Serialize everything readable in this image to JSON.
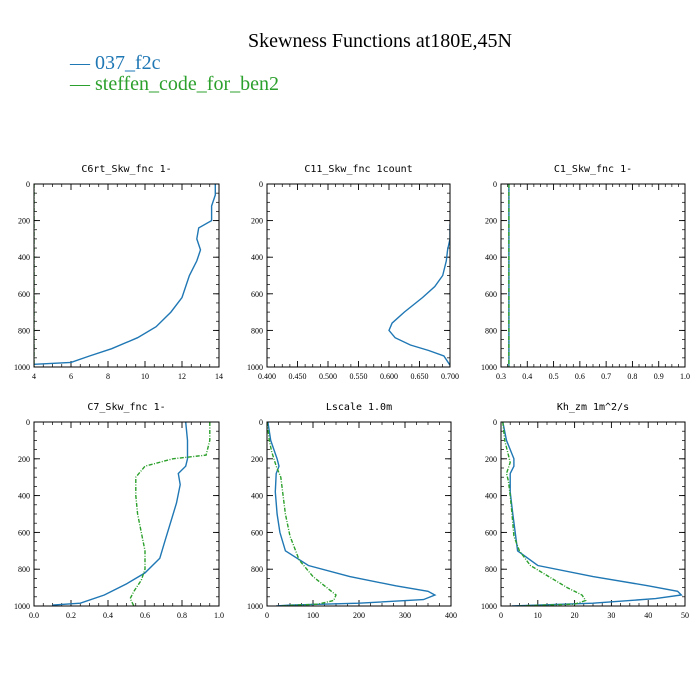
{
  "figure": {
    "title": "Skewness Functions at180E,45N"
  },
  "legend": [
    {
      "label": "037_f2c",
      "color": "#1f77b4"
    },
    {
      "label": "steffen_code_for_ben2",
      "color": "#2ca02c"
    }
  ],
  "chart_data": [
    {
      "type": "line",
      "title": "C6rt_Skw_fnc  1-",
      "xlim": [
        4,
        14
      ],
      "ylim": [
        1000,
        0
      ],
      "xticks": [
        4,
        6,
        8,
        10,
        12,
        14
      ],
      "xtick_labels": [
        "4",
        "6",
        "8",
        "10",
        "12",
        "14"
      ],
      "yticks": [
        0,
        200,
        400,
        600,
        800,
        1000
      ],
      "ytick_labels": [
        "0",
        "200",
        "400",
        "600",
        "800",
        "1000"
      ],
      "series": [
        {
          "name": "037_f2c",
          "color": "#1f77b4",
          "dashed": false,
          "x": [
            13.8,
            13.8,
            13.6,
            13.6,
            12.9,
            12.8,
            13.0,
            12.8,
            12.4,
            12.2,
            12.0,
            11.4,
            10.6,
            9.6,
            8.2,
            7.0,
            6.0,
            4.0
          ],
          "y": [
            0,
            60,
            120,
            200,
            240,
            300,
            360,
            420,
            500,
            560,
            620,
            700,
            780,
            840,
            900,
            940,
            975,
            985
          ]
        },
        {
          "name": "steffen_code_for_ben2",
          "color": "#2ca02c",
          "dashed": true,
          "x": [
            4.0,
            4.0
          ],
          "y": [
            0,
            1000
          ]
        }
      ]
    },
    {
      "type": "line",
      "title": "C11_Skw_fnc  1count",
      "xlim": [
        0.4,
        0.7
      ],
      "ylim": [
        1000,
        0
      ],
      "xticks": [
        0.4,
        0.45,
        0.5,
        0.55,
        0.6,
        0.65,
        0.7
      ],
      "xtick_labels": [
        "0.400",
        "0.450",
        "0.500",
        "0.550",
        "0.600",
        "0.650",
        "0.700"
      ],
      "yticks": [
        0,
        200,
        400,
        600,
        800,
        1000
      ],
      "ytick_labels": [
        "0",
        "200",
        "400",
        "600",
        "800",
        "1000"
      ],
      "series": [
        {
          "name": "037_f2c",
          "color": "#1f77b4",
          "dashed": false,
          "x": [
            0.7,
            0.7,
            0.696,
            0.694,
            0.688,
            0.675,
            0.655,
            0.625,
            0.605,
            0.6,
            0.61,
            0.635,
            0.665,
            0.69,
            0.7
          ],
          "y": [
            220,
            300,
            360,
            420,
            500,
            560,
            620,
            700,
            760,
            800,
            840,
            880,
            910,
            940,
            990
          ]
        },
        {
          "name": "steffen_code_for_ben2",
          "color": "#2ca02c",
          "dashed": true,
          "x": [],
          "y": []
        }
      ]
    },
    {
      "type": "line",
      "title": "C1_Skw_fnc  1-",
      "xlim": [
        0.3,
        1.0
      ],
      "ylim": [
        1000,
        0
      ],
      "xticks": [
        0.3,
        0.4,
        0.5,
        0.6,
        0.7,
        0.8,
        0.9,
        1.0
      ],
      "xtick_labels": [
        "0.3",
        "0.4",
        "0.5",
        "0.6",
        "0.7",
        "0.8",
        "0.9",
        "1.0"
      ],
      "yticks": [
        0,
        200,
        400,
        600,
        800,
        1000
      ],
      "ytick_labels": [
        "0",
        "200",
        "400",
        "600",
        "800",
        "1000"
      ],
      "series": [
        {
          "name": "037_f2c",
          "color": "#1f77b4",
          "dashed": false,
          "x": [
            0.33,
            0.33
          ],
          "y": [
            0,
            1000
          ]
        },
        {
          "name": "steffen_code_for_ben2",
          "color": "#2ca02c",
          "dashed": true,
          "x": [
            0.33,
            0.33
          ],
          "y": [
            0,
            1000
          ]
        }
      ]
    },
    {
      "type": "line",
      "title": "C7_Skw_fnc  1-",
      "xlim": [
        0.0,
        1.0
      ],
      "ylim": [
        1000,
        0
      ],
      "xticks": [
        0.0,
        0.2,
        0.4,
        0.6,
        0.8,
        1.0
      ],
      "xtick_labels": [
        "0.0",
        "0.2",
        "0.4",
        "0.6",
        "0.8",
        "1.0"
      ],
      "yticks": [
        0,
        200,
        400,
        600,
        800,
        1000
      ],
      "ytick_labels": [
        "0",
        "200",
        "400",
        "600",
        "800",
        "1000"
      ],
      "series": [
        {
          "name": "037_f2c",
          "color": "#1f77b4",
          "dashed": false,
          "x": [
            0.82,
            0.83,
            0.83,
            0.82,
            0.78,
            0.79,
            0.77,
            0.74,
            0.71,
            0.68,
            0.6,
            0.5,
            0.38,
            0.25,
            0.1
          ],
          "y": [
            0,
            100,
            200,
            240,
            280,
            340,
            440,
            540,
            640,
            740,
            820,
            880,
            940,
            985,
            995
          ]
        },
        {
          "name": "steffen_code_for_ben2",
          "color": "#2ca02c",
          "dashed": true,
          "x": [
            0.95,
            0.95,
            0.93,
            0.75,
            0.6,
            0.55,
            0.55,
            0.56,
            0.58,
            0.6,
            0.6,
            0.58,
            0.54,
            0.52,
            0.54
          ],
          "y": [
            0,
            100,
            180,
            200,
            240,
            300,
            400,
            500,
            600,
            700,
            800,
            860,
            920,
            960,
            1000
          ]
        }
      ]
    },
    {
      "type": "line",
      "title": "Lscale  1.0m",
      "xlim": [
        0,
        400
      ],
      "ylim": [
        1000,
        0
      ],
      "xticks": [
        0,
        100,
        200,
        300,
        400
      ],
      "xtick_labels": [
        "0",
        "100",
        "200",
        "300",
        "400"
      ],
      "yticks": [
        0,
        200,
        400,
        600,
        800,
        1000
      ],
      "ytick_labels": [
        "0",
        "200",
        "400",
        "600",
        "800",
        "1000"
      ],
      "series": [
        {
          "name": "037_f2c",
          "color": "#1f77b4",
          "dashed": false,
          "x": [
            2,
            8,
            22,
            26,
            20,
            18,
            22,
            28,
            40,
            90,
            180,
            280,
            350,
            365,
            340,
            200,
            50,
            20
          ],
          "y": [
            0,
            100,
            200,
            240,
            280,
            380,
            500,
            600,
            700,
            780,
            840,
            890,
            920,
            940,
            965,
            985,
            995,
            1000
          ]
        },
        {
          "name": "steffen_code_for_ben2",
          "color": "#2ca02c",
          "dashed": true,
          "x": [
            0,
            5,
            10,
            15,
            20,
            30,
            35,
            40,
            50,
            70,
            100,
            130,
            150,
            145,
            110,
            60,
            30
          ],
          "y": [
            0,
            100,
            160,
            200,
            240,
            300,
            400,
            500,
            620,
            750,
            840,
            900,
            940,
            970,
            990,
            995,
            1000
          ]
        }
      ]
    },
    {
      "type": "line",
      "title": "Kh_zm  1m^2/s",
      "xlim": [
        0,
        50
      ],
      "ylim": [
        1000,
        0
      ],
      "xticks": [
        0,
        10,
        20,
        30,
        40,
        50
      ],
      "xtick_labels": [
        "0",
        "10",
        "20",
        "30",
        "40",
        "50"
      ],
      "yticks": [
        0,
        200,
        400,
        600,
        800,
        1000
      ],
      "ytick_labels": [
        "0",
        "200",
        "400",
        "600",
        "800",
        "1000"
      ],
      "series": [
        {
          "name": "037_f2c",
          "color": "#1f77b4",
          "dashed": false,
          "x": [
            0.5,
            1.5,
            3.5,
            3.5,
            2.5,
            2.5,
            3.2,
            4.5,
            10,
            25,
            40,
            48,
            49,
            42,
            25,
            10,
            3
          ],
          "y": [
            0,
            100,
            200,
            240,
            280,
            380,
            500,
            700,
            780,
            840,
            890,
            920,
            940,
            960,
            985,
            995,
            1000
          ]
        },
        {
          "name": "steffen_code_for_ben2",
          "color": "#2ca02c",
          "dashed": true,
          "x": [
            0.5,
            1,
            2,
            2.5,
            1.5,
            2,
            2.5,
            3,
            3.5,
            5,
            8,
            13,
            18,
            22,
            23,
            20,
            12,
            5
          ],
          "y": [
            0,
            100,
            180,
            220,
            280,
            320,
            400,
            500,
            620,
            700,
            780,
            840,
            900,
            940,
            970,
            990,
            995,
            1000
          ]
        }
      ]
    }
  ]
}
